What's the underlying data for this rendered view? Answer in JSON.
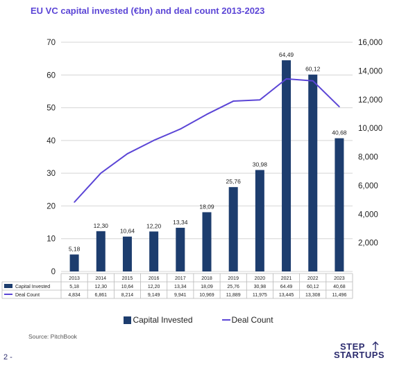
{
  "title": "EU VC capital invested (€bn) and deal count 2013-2023",
  "source": "Source: PitchBook",
  "page_number": "2 -",
  "logo": {
    "line1": "STEP",
    "line2": "STARTUPS"
  },
  "colors": {
    "bar": "#1d3d6e",
    "line": "#5b45d6",
    "title": "#5b45d6"
  },
  "legend": {
    "bar_label": "Capital Invested",
    "line_label": "Deal Count"
  },
  "chart_data": {
    "type": "bar",
    "title": "EU VC capital invested (€bn) and deal count 2013-2023",
    "categories": [
      "2013",
      "2014",
      "2015",
      "2016",
      "2017",
      "2018",
      "2019",
      "2020",
      "2021",
      "2022",
      "2023"
    ],
    "series": [
      {
        "name": "Capital Invested",
        "type": "bar",
        "axis": "left",
        "values": [
          5.18,
          12.3,
          10.64,
          12.2,
          13.34,
          18.09,
          25.76,
          30.98,
          64.49,
          60.12,
          40.68
        ],
        "labels": [
          "5,18",
          "12,30",
          "10,64",
          "12,20",
          "13,34",
          "18,09",
          "25,76",
          "30,98",
          "64,49",
          "60,12",
          "40,68"
        ],
        "table_labels": [
          "5,18",
          "12,30",
          "10,64",
          "12,20",
          "13,34",
          "18,09",
          "25,76",
          "30,98",
          "64.49",
          "60,12",
          "40,68"
        ]
      },
      {
        "name": "Deal Count",
        "type": "line",
        "axis": "right",
        "values": [
          4834,
          6861,
          8214,
          9149,
          9941,
          10969,
          11889,
          11975,
          13445,
          13308,
          11496
        ],
        "table_labels": [
          "4,834",
          "6,861",
          "8,214",
          "9,149",
          "9,941",
          "10,969",
          "11,889",
          "11,975",
          "13,445",
          "13,308",
          "11,496"
        ]
      }
    ],
    "y_left": {
      "min": 0,
      "max": 70,
      "ticks": [
        "0",
        "10",
        "20",
        "30",
        "40",
        "50",
        "60",
        "70"
      ]
    },
    "y_right": {
      "min": 0,
      "max": 16000,
      "ticks": [
        "2,000",
        "4,000",
        "6,000",
        "8,000",
        "10,000",
        "12,000",
        "14,000",
        "16,000"
      ]
    },
    "grid": true,
    "legend_position": "bottom"
  }
}
